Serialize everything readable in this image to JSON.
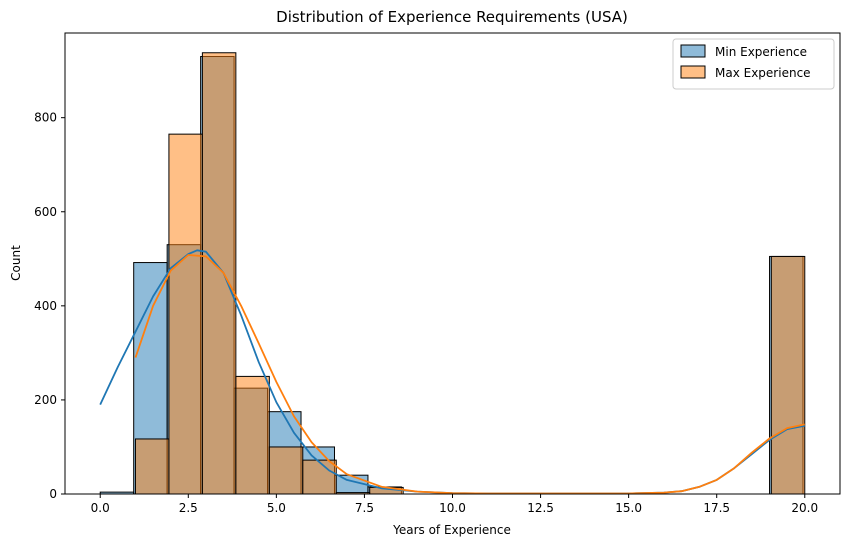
{
  "chart_data": {
    "type": "histogram",
    "title": "Distribution of Experience Requirements (USA)",
    "xlabel": "Years of Experience",
    "ylabel": "Count",
    "xlim": [
      -1.0,
      21.0
    ],
    "ylim": [
      0,
      980
    ],
    "xticks": [
      "0.0",
      "2.5",
      "5.0",
      "7.5",
      "10.0",
      "12.5",
      "15.0",
      "17.5",
      "20.0"
    ],
    "yticks": [
      "0",
      "200",
      "400",
      "600",
      "800"
    ],
    "grid": false,
    "legend_position": "top-right",
    "series": [
      {
        "name": "Min Experience",
        "color": "#1f77b4",
        "bin_width": 0.95,
        "bins": [
          {
            "x0": 0.0,
            "count": 4
          },
          {
            "x0": 0.95,
            "count": 492
          },
          {
            "x0": 1.9,
            "count": 530
          },
          {
            "x0": 2.85,
            "count": 930
          },
          {
            "x0": 3.8,
            "count": 225
          },
          {
            "x0": 4.75,
            "count": 175
          },
          {
            "x0": 5.7,
            "count": 100
          },
          {
            "x0": 6.65,
            "count": 40
          },
          {
            "x0": 7.6,
            "count": 15
          },
          {
            "x0": 8.55,
            "count": 0
          },
          {
            "x0": 9.5,
            "count": 0
          },
          {
            "x0": 10.45,
            "count": 0
          },
          {
            "x0": 11.4,
            "count": 0
          },
          {
            "x0": 12.35,
            "count": 0
          },
          {
            "x0": 13.3,
            "count": 0
          },
          {
            "x0": 14.25,
            "count": 0
          },
          {
            "x0": 15.2,
            "count": 0
          },
          {
            "x0": 16.15,
            "count": 0
          },
          {
            "x0": 17.1,
            "count": 0
          },
          {
            "x0": 18.05,
            "count": 0
          },
          {
            "x0": 19.0,
            "count": 505
          }
        ],
        "kde": {
          "x": [
            0,
            0.5,
            1,
            1.5,
            2,
            2.5,
            2.75,
            3,
            3.5,
            4,
            4.5,
            5,
            5.5,
            6,
            6.5,
            7,
            8,
            9,
            10,
            11,
            12,
            13,
            14,
            15,
            16,
            16.5,
            17,
            17.5,
            18,
            18.5,
            19,
            19.5,
            20
          ],
          "y": [
            190,
            270,
            345,
            420,
            480,
            510,
            518,
            515,
            470,
            380,
            280,
            195,
            130,
            82,
            50,
            30,
            12,
            5,
            2,
            1,
            1,
            1,
            1,
            1,
            3,
            6,
            15,
            30,
            55,
            85,
            115,
            138,
            145
          ]
        }
      },
      {
        "name": "Max Experience",
        "color": "#ff7f0e",
        "bin_width": 0.95,
        "bins": [
          {
            "x0": 1.0,
            "count": 117
          },
          {
            "x0": 1.95,
            "count": 765
          },
          {
            "x0": 2.9,
            "count": 938
          },
          {
            "x0": 3.85,
            "count": 250
          },
          {
            "x0": 4.8,
            "count": 100
          },
          {
            "x0": 5.75,
            "count": 72
          },
          {
            "x0": 6.7,
            "count": 3
          },
          {
            "x0": 7.65,
            "count": 14
          },
          {
            "x0": 8.6,
            "count": 0
          },
          {
            "x0": 9.55,
            "count": 0
          },
          {
            "x0": 10.5,
            "count": 0
          },
          {
            "x0": 11.45,
            "count": 0
          },
          {
            "x0": 12.4,
            "count": 0
          },
          {
            "x0": 13.35,
            "count": 0
          },
          {
            "x0": 14.3,
            "count": 0
          },
          {
            "x0": 15.25,
            "count": 0
          },
          {
            "x0": 16.2,
            "count": 0
          },
          {
            "x0": 17.15,
            "count": 0
          },
          {
            "x0": 18.1,
            "count": 0
          },
          {
            "x0": 19.05,
            "count": 505
          }
        ],
        "kde": {
          "x": [
            1,
            1.5,
            2,
            2.5,
            3,
            3.5,
            4,
            4.5,
            5,
            5.5,
            6,
            6.5,
            7,
            8,
            9,
            10,
            11,
            12,
            13,
            14,
            15,
            16,
            16.5,
            17,
            17.5,
            18,
            18.5,
            19,
            19.5,
            20
          ],
          "y": [
            290,
            400,
            475,
            508,
            505,
            470,
            400,
            320,
            238,
            165,
            110,
            70,
            42,
            15,
            5,
            2,
            1,
            1,
            1,
            1,
            1,
            3,
            6,
            15,
            30,
            55,
            88,
            118,
            140,
            148
          ]
        }
      }
    ]
  }
}
